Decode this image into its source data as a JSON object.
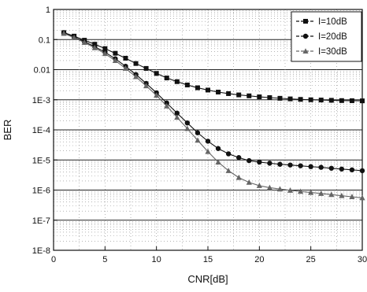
{
  "chart_data": {
    "type": "line",
    "xlabel": "CNR[dB]",
    "ylabel": "BER",
    "xlim": [
      0,
      30
    ],
    "ylim": [
      1e-08,
      1
    ],
    "yscale": "log",
    "x_ticks": [
      "0",
      "5",
      "10",
      "15",
      "20",
      "25",
      "30"
    ],
    "y_ticks": [
      "1E-8",
      "1E-7",
      "1E-6",
      "1E-5",
      "1E-4",
      "1E-3",
      "0.01",
      "0.1",
      "1"
    ],
    "grid": true,
    "legend_position": "top-right",
    "x": [
      1,
      2,
      3,
      4,
      5,
      6,
      7,
      8,
      9,
      10,
      11,
      12,
      13,
      14,
      15,
      16,
      17,
      18,
      19,
      20,
      21,
      22,
      23,
      24,
      25,
      26,
      27,
      28,
      29,
      30
    ],
    "series": [
      {
        "name": "I=10dB",
        "marker": "square",
        "color": "#111111",
        "values": [
          0.17,
          0.13,
          0.095,
          0.07,
          0.05,
          0.035,
          0.024,
          0.016,
          0.011,
          0.0075,
          0.0053,
          0.004,
          0.0031,
          0.0025,
          0.0021,
          0.0018,
          0.0016,
          0.00145,
          0.00135,
          0.00125,
          0.00118,
          0.00112,
          0.00107,
          0.00103,
          0.001,
          0.00098,
          0.00096,
          0.00094,
          0.00093,
          0.00092
        ]
      },
      {
        "name": "I=20dB",
        "marker": "circle",
        "color": "#111111",
        "values": [
          0.17,
          0.12,
          0.085,
          0.058,
          0.038,
          0.023,
          0.013,
          0.0069,
          0.0035,
          0.0017,
          0.00078,
          0.00036,
          0.00017,
          8e-05,
          4.2e-05,
          2.4e-05,
          1.6e-05,
          1.2e-05,
          9.5e-06,
          8.5e-06,
          7.8e-06,
          7.2e-06,
          6.8e-06,
          6.4e-06,
          6e-06,
          5.7e-06,
          5.3e-06,
          5e-06,
          4.7e-06,
          4.4e-06
        ]
      },
      {
        "name": "I=30dB",
        "marker": "triangle",
        "color": "#666666",
        "values": [
          0.16,
          0.115,
          0.08,
          0.053,
          0.034,
          0.02,
          0.011,
          0.0058,
          0.0029,
          0.0014,
          0.00062,
          0.00026,
          0.00011,
          4.5e-05,
          1.9e-05,
          8.5e-06,
          4.4e-06,
          2.6e-06,
          1.8e-06,
          1.4e-06,
          1.2e-06,
          1.08e-06,
          9.8e-07,
          9e-07,
          8.3e-07,
          7.7e-07,
          7.1e-07,
          6.5e-07,
          6e-07,
          5.5e-07
        ]
      }
    ]
  }
}
